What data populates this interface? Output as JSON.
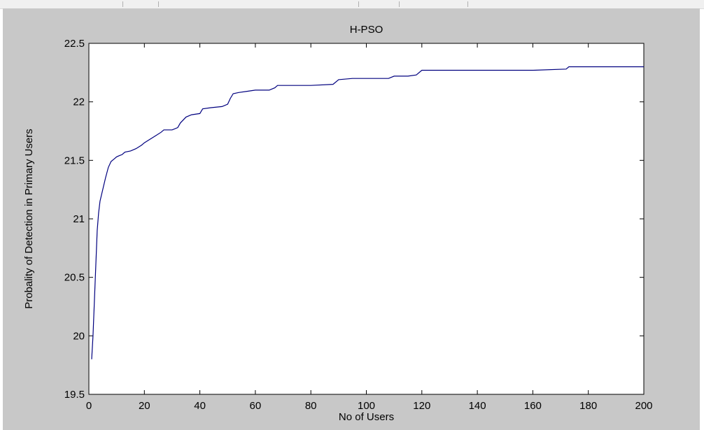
{
  "chart_data": {
    "type": "line",
    "title": "H-PSO",
    "xlabel": "No of Users",
    "ylabel": "Probality of Detection in Primary Users",
    "xlim": [
      0,
      200
    ],
    "ylim": [
      19.5,
      22.5
    ],
    "xticks": [
      0,
      20,
      40,
      60,
      80,
      100,
      120,
      140,
      160,
      180,
      200
    ],
    "yticks": [
      19.5,
      20,
      20.5,
      21,
      21.5,
      22,
      22.5
    ],
    "grid": false,
    "legend": "none",
    "series": [
      {
        "color": "#00007f",
        "x": [
          1,
          1.5,
          2,
          2.5,
          3,
          3.5,
          4,
          5,
          6,
          7,
          8,
          9,
          10,
          11,
          12,
          13,
          15,
          17,
          19,
          20,
          22,
          24,
          26,
          27,
          30,
          32,
          33,
          35,
          37,
          40,
          41,
          44,
          48,
          50,
          51,
          52,
          54,
          57,
          60,
          65,
          67,
          68,
          72,
          80,
          88,
          90,
          95,
          100,
          105,
          108,
          110,
          115,
          118,
          120,
          130,
          140,
          150,
          160,
          172,
          173,
          180,
          190,
          200
        ],
        "values": [
          19.8,
          20.0,
          20.3,
          20.6,
          20.9,
          21.05,
          21.15,
          21.25,
          21.35,
          21.44,
          21.49,
          21.51,
          21.53,
          21.54,
          21.55,
          21.57,
          21.58,
          21.6,
          21.63,
          21.65,
          21.68,
          21.71,
          21.74,
          21.76,
          21.76,
          21.78,
          21.82,
          21.87,
          21.89,
          21.9,
          21.94,
          21.95,
          21.96,
          21.98,
          22.03,
          22.07,
          22.08,
          22.09,
          22.1,
          22.1,
          22.12,
          22.14,
          22.14,
          22.14,
          22.15,
          22.19,
          22.2,
          22.2,
          22.2,
          22.2,
          22.22,
          22.22,
          22.23,
          22.27,
          22.27,
          22.27,
          22.27,
          22.27,
          22.28,
          22.3,
          22.3,
          22.3,
          22.3
        ]
      }
    ]
  }
}
